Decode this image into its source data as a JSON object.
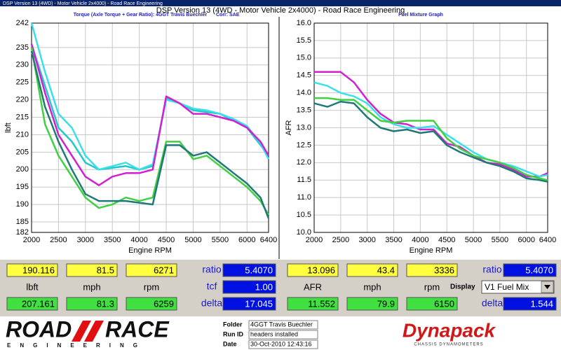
{
  "window_title": "DSP Version 13 (4WD) - Motor Vehicle 2x4000) - Road Race Engineering",
  "header": "DSP Version 13 (4WD - Motor Vehicle 2x4000) - Road Race Engineering",
  "chart_data": [
    {
      "type": "line",
      "title": "Torque (Axle Torque + Gear Ratio): 4GGT Travis Buechler",
      "note": "Corr: SAE",
      "x_label": "Engine RPM",
      "y_label": "lbft",
      "x": [
        2000,
        2250,
        2500,
        2750,
        3000,
        3250,
        3500,
        3750,
        4000,
        4250,
        4500,
        4750,
        5000,
        5250,
        5500,
        5750,
        6000,
        6250,
        6400
      ],
      "xlim": [
        2000,
        6400
      ],
      "xticks": [
        2000,
        2500,
        3000,
        3500,
        4000,
        4500,
        5000,
        5500,
        6000,
        6400
      ],
      "ylim": [
        182,
        242
      ],
      "yticks": [
        182,
        185,
        190,
        195,
        200,
        205,
        210,
        215,
        220,
        225,
        230,
        235,
        242
      ],
      "grid": true,
      "series": [
        {
          "color": "#20c8c8",
          "values": [
            236,
            224,
            212,
            208,
            202,
            200,
            200.5,
            201,
            200,
            201,
            220.5,
            219,
            217,
            216.5,
            216,
            214,
            212,
            207,
            204
          ]
        },
        {
          "color": "#3ae0e8",
          "values": [
            242,
            228,
            216,
            212,
            204,
            200,
            201,
            202,
            200,
            201.5,
            220,
            219,
            217.5,
            217,
            216,
            214.5,
            212.5,
            207.5,
            203
          ]
        },
        {
          "color": "#d020d0",
          "values": [
            236,
            222,
            210,
            204,
            198,
            195.5,
            198,
            199,
            199,
            200,
            221,
            219,
            216,
            216,
            215,
            214,
            212,
            208,
            204
          ]
        },
        {
          "color": "#40d040",
          "values": [
            235,
            213,
            204,
            198,
            192,
            189,
            190,
            192,
            191,
            192,
            208,
            208,
            203,
            204,
            201,
            198,
            195,
            191,
            187
          ]
        },
        {
          "color": "#207878",
          "values": [
            234,
            218,
            208,
            200,
            193,
            191,
            191,
            191,
            190.5,
            190,
            207,
            207,
            204,
            205,
            202,
            199,
            196,
            192,
            186
          ]
        }
      ]
    },
    {
      "type": "line",
      "title": "Fuel Mixture Graph",
      "x_label": "Engine RPM",
      "y_label": "AFR",
      "x": [
        2000,
        2250,
        2500,
        2750,
        3000,
        3250,
        3500,
        3750,
        4000,
        4250,
        4500,
        4750,
        5000,
        5250,
        5500,
        5750,
        6000,
        6250,
        6400
      ],
      "xlim": [
        2000,
        6400
      ],
      "xticks": [
        2000,
        2500,
        3000,
        3500,
        4000,
        4500,
        5000,
        5500,
        6000,
        6400
      ],
      "ylim": [
        10,
        16
      ],
      "yticks": [
        {
          "value": 10,
          "label": "10.0"
        },
        10.5,
        {
          "value": 11,
          "label": "11.0"
        },
        11.5,
        {
          "value": 12,
          "label": "12.0"
        },
        12.5,
        {
          "value": 13,
          "label": "13.0"
        },
        13.5,
        {
          "value": 14,
          "label": "14.0"
        },
        14.5,
        {
          "value": 15,
          "label": "15.0"
        },
        15.5,
        {
          "value": 16,
          "label": "16.0"
        }
      ],
      "grid": true,
      "series": [
        {
          "color": "#d020d0",
          "values": [
            14.6,
            14.6,
            14.6,
            14.3,
            13.8,
            13.4,
            13.15,
            13.1,
            12.95,
            12.95,
            12.55,
            12.45,
            12.2,
            12.0,
            11.95,
            11.8,
            11.6,
            11.6,
            11.7
          ]
        },
        {
          "color": "#3ae0e8",
          "values": [
            14.3,
            14.2,
            14.0,
            13.9,
            13.7,
            13.3,
            13.1,
            13.0,
            13.0,
            13.05,
            12.8,
            12.55,
            12.3,
            12.1,
            12.0,
            11.9,
            11.75,
            11.6,
            11.65
          ]
        },
        {
          "color": "#40d040",
          "values": [
            13.85,
            13.85,
            13.8,
            13.8,
            13.5,
            13.2,
            13.15,
            13.2,
            13.2,
            13.2,
            12.7,
            12.4,
            12.2,
            12.1,
            12.0,
            11.85,
            11.65,
            11.55,
            11.5
          ]
        },
        {
          "color": "#207878",
          "values": [
            13.7,
            13.6,
            13.75,
            13.7,
            13.3,
            13.0,
            12.9,
            12.95,
            12.85,
            12.9,
            12.5,
            12.3,
            12.15,
            12.0,
            11.9,
            11.75,
            11.55,
            11.5,
            11.45
          ]
        }
      ]
    }
  ],
  "readouts": [
    {
      "current": [
        "190.116",
        "81.5",
        "6271"
      ],
      "labels": [
        "lbft",
        "mph",
        "rpm"
      ],
      "peak": [
        "207.161",
        "81.3",
        "6259"
      ],
      "side": [
        {
          "label": "ratio",
          "value": "5.4070"
        },
        {
          "label": "tcf",
          "value": "1.00"
        },
        {
          "label": "delta",
          "value": "17.045"
        }
      ]
    },
    {
      "current": [
        "13.096",
        "43.4",
        "3336"
      ],
      "labels": [
        "AFR",
        "mph",
        "rpm"
      ],
      "peak": [
        "11.552",
        "79.9",
        "6150"
      ],
      "side": [
        {
          "label": "ratio",
          "value": "5.4070"
        },
        {
          "label": "delta",
          "value": "1.544"
        }
      ],
      "display_label": "Display",
      "display_value": "V1 Fuel Mix"
    }
  ],
  "footer": {
    "logo": [
      "ROAD",
      "RACE",
      "ENGINEERING"
    ],
    "fields": [
      {
        "label": "Folder",
        "value": "4GGT Travis Buechler"
      },
      {
        "label": "Run ID",
        "value": "headers installed"
      },
      {
        "label": "Date",
        "value": "30-Oct-2010 12:43:16"
      }
    ],
    "brand": "Dynapack",
    "brand_sub": "CHASSIS DYNAMOMETERS"
  }
}
